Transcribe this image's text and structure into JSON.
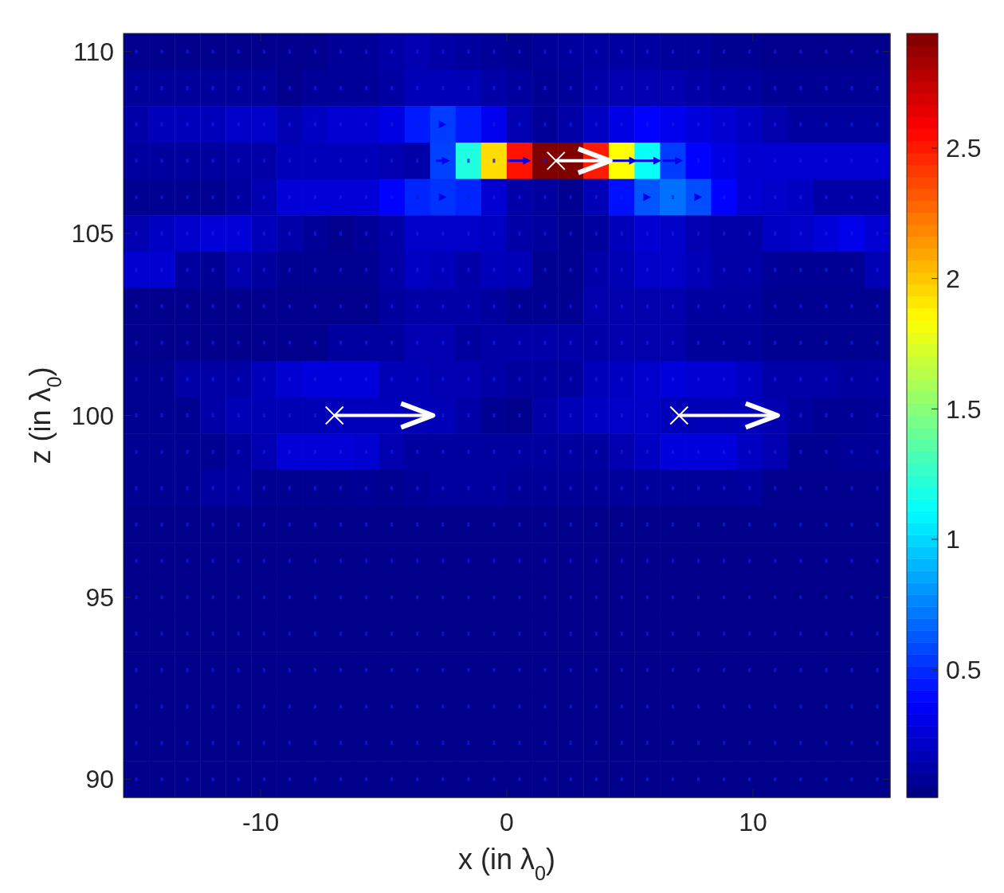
{
  "chart_data": {
    "type": "heatmap",
    "xlabel": "x (in λ$_{0}$)",
    "ylabel": "z (in λ$_{0}$)",
    "xlim": [
      -15.57,
      15.57
    ],
    "ylim": [
      89.5,
      110.5
    ],
    "xticks": [
      -10,
      0,
      10
    ],
    "yticks": [
      90,
      95,
      100,
      105,
      110
    ],
    "clim": [
      0.01,
      2.94
    ],
    "cticks": [
      0.5,
      1,
      1.5,
      2,
      2.5
    ],
    "cells": [
      [
        0.05,
        0.05,
        0.05,
        0.05,
        0.05,
        0.05,
        0.05,
        0.05,
        0.08,
        0.08,
        0.12,
        0.15,
        0.12,
        0.1,
        0.08,
        0.06,
        0.08,
        0.1,
        0.11,
        0.11,
        0.11,
        0.09,
        0.09,
        0.06,
        0.06,
        0.05,
        0.05,
        0.05,
        0.05,
        0.05
      ],
      [
        0.09,
        0.09,
        0.09,
        0.09,
        0.09,
        0.09,
        0.05,
        0.08,
        0.08,
        0.08,
        0.11,
        0.17,
        0.17,
        0.17,
        0.12,
        0.1,
        0.07,
        0.09,
        0.13,
        0.15,
        0.15,
        0.15,
        0.12,
        0.1,
        0.1,
        0.07,
        0.07,
        0.07,
        0.07,
        0.07
      ],
      [
        0.13,
        0.18,
        0.18,
        0.18,
        0.22,
        0.22,
        0.15,
        0.2,
        0.25,
        0.25,
        0.3,
        0.45,
        0.55,
        0.45,
        0.33,
        0.15,
        0.08,
        0.12,
        0.2,
        0.3,
        0.38,
        0.33,
        0.28,
        0.24,
        0.2,
        0.14,
        0.1,
        0.1,
        0.1,
        0.1
      ],
      [
        0.1,
        0.1,
        0.1,
        0.1,
        0.12,
        0.12,
        0.18,
        0.18,
        0.18,
        0.18,
        0.15,
        0.13,
        0.56,
        1.2,
        1.94,
        2.52,
        2.94,
        2.94,
        2.5,
        1.84,
        1.13,
        0.55,
        0.38,
        0.3,
        0.24,
        0.25,
        0.25,
        0.25,
        0.25,
        0.25
      ],
      [
        0.06,
        0.06,
        0.06,
        0.06,
        0.1,
        0.15,
        0.26,
        0.26,
        0.26,
        0.26,
        0.38,
        0.48,
        0.52,
        0.48,
        0.25,
        0.13,
        0.1,
        0.06,
        0.17,
        0.42,
        0.62,
        0.7,
        0.6,
        0.38,
        0.25,
        0.22,
        0.2,
        0.12,
        0.12,
        0.12
      ],
      [
        0.15,
        0.2,
        0.23,
        0.26,
        0.26,
        0.18,
        0.13,
        0.08,
        0.05,
        0.08,
        0.13,
        0.22,
        0.22,
        0.22,
        0.2,
        0.12,
        0.1,
        0.06,
        0.1,
        0.18,
        0.25,
        0.22,
        0.15,
        0.13,
        0.12,
        0.2,
        0.22,
        0.27,
        0.32,
        0.25
      ],
      [
        0.24,
        0.24,
        0.1,
        0.07,
        0.14,
        0.1,
        0.06,
        0.06,
        0.06,
        0.06,
        0.12,
        0.2,
        0.18,
        0.13,
        0.18,
        0.17,
        0.06,
        0.06,
        0.13,
        0.16,
        0.22,
        0.22,
        0.17,
        0.12,
        0.12,
        0.08,
        0.07,
        0.07,
        0.07,
        0.16
      ],
      [
        0.05,
        0.05,
        0.05,
        0.05,
        0.05,
        0.05,
        0.05,
        0.05,
        0.05,
        0.05,
        0.1,
        0.12,
        0.12,
        0.12,
        0.1,
        0.06,
        0.06,
        0.06,
        0.14,
        0.14,
        0.14,
        0.14,
        0.1,
        0.1,
        0.1,
        0.06,
        0.06,
        0.06,
        0.06,
        0.06
      ],
      [
        0.05,
        0.05,
        0.05,
        0.05,
        0.05,
        0.05,
        0.05,
        0.05,
        0.1,
        0.1,
        0.1,
        0.15,
        0.15,
        0.1,
        0.12,
        0.13,
        0.13,
        0.13,
        0.13,
        0.14,
        0.14,
        0.14,
        0.09,
        0.09,
        0.09,
        0.06,
        0.06,
        0.06,
        0.06,
        0.06
      ],
      [
        0.06,
        0.06,
        0.12,
        0.12,
        0.12,
        0.18,
        0.24,
        0.28,
        0.28,
        0.28,
        0.17,
        0.17,
        0.15,
        0.15,
        0.12,
        0.1,
        0.1,
        0.1,
        0.18,
        0.2,
        0.23,
        0.27,
        0.25,
        0.25,
        0.2,
        0.13,
        0.13,
        0.13,
        0.1,
        0.11
      ],
      [
        0.06,
        0.06,
        0.06,
        0.12,
        0.16,
        0.16,
        0.16,
        0.16,
        0.18,
        0.18,
        0.18,
        0.17,
        0.17,
        0.12,
        0.06,
        0.05,
        0.13,
        0.17,
        0.2,
        0.22,
        0.22,
        0.18,
        0.17,
        0.17,
        0.18,
        0.15,
        0.1,
        0.07,
        0.07,
        0.08
      ],
      [
        0.06,
        0.06,
        0.06,
        0.06,
        0.1,
        0.15,
        0.26,
        0.26,
        0.26,
        0.24,
        0.15,
        0.1,
        0.1,
        0.1,
        0.1,
        0.1,
        0.1,
        0.1,
        0.1,
        0.15,
        0.2,
        0.27,
        0.27,
        0.27,
        0.2,
        0.15,
        0.06,
        0.06,
        0.08,
        0.08
      ],
      [
        0.06,
        0.06,
        0.06,
        0.11,
        0.11,
        0.06,
        0.06,
        0.06,
        0.06,
        0.07,
        0.06,
        0.08,
        0.1,
        0.1,
        0.1,
        0.08,
        0.08,
        0.08,
        0.08,
        0.09,
        0.09,
        0.09,
        0.09,
        0.09,
        0.1,
        0.05,
        0.05,
        0.05,
        0.05,
        0.05
      ],
      [
        0.04,
        0.04,
        0.04,
        0.04,
        0.04,
        0.04,
        0.04,
        0.04,
        0.04,
        0.04,
        0.04,
        0.04,
        0.04,
        0.04,
        0.04,
        0.04,
        0.04,
        0.04,
        0.04,
        0.04,
        0.04,
        0.04,
        0.04,
        0.04,
        0.04,
        0.04,
        0.04,
        0.04,
        0.04,
        0.04
      ],
      [
        0.04,
        0.04,
        0.04,
        0.04,
        0.04,
        0.04,
        0.04,
        0.04,
        0.04,
        0.04,
        0.04,
        0.04,
        0.04,
        0.04,
        0.04,
        0.04,
        0.04,
        0.04,
        0.04,
        0.04,
        0.04,
        0.04,
        0.04,
        0.04,
        0.04,
        0.04,
        0.04,
        0.04,
        0.04,
        0.04
      ],
      [
        0.04,
        0.04,
        0.04,
        0.04,
        0.04,
        0.04,
        0.04,
        0.04,
        0.04,
        0.04,
        0.04,
        0.04,
        0.04,
        0.04,
        0.04,
        0.04,
        0.04,
        0.04,
        0.04,
        0.04,
        0.04,
        0.04,
        0.04,
        0.04,
        0.04,
        0.04,
        0.04,
        0.04,
        0.04,
        0.04
      ],
      [
        0.04,
        0.04,
        0.04,
        0.04,
        0.04,
        0.04,
        0.04,
        0.04,
        0.04,
        0.04,
        0.04,
        0.04,
        0.04,
        0.04,
        0.04,
        0.04,
        0.04,
        0.04,
        0.04,
        0.04,
        0.04,
        0.04,
        0.04,
        0.04,
        0.04,
        0.04,
        0.04,
        0.04,
        0.04,
        0.04
      ],
      [
        0.04,
        0.04,
        0.04,
        0.04,
        0.04,
        0.04,
        0.04,
        0.04,
        0.04,
        0.04,
        0.04,
        0.04,
        0.04,
        0.04,
        0.04,
        0.04,
        0.04,
        0.04,
        0.04,
        0.04,
        0.04,
        0.04,
        0.04,
        0.04,
        0.04,
        0.04,
        0.04,
        0.04,
        0.04,
        0.04
      ],
      [
        0.04,
        0.04,
        0.04,
        0.04,
        0.04,
        0.04,
        0.04,
        0.04,
        0.04,
        0.04,
        0.04,
        0.04,
        0.04,
        0.04,
        0.04,
        0.04,
        0.04,
        0.04,
        0.04,
        0.04,
        0.04,
        0.04,
        0.04,
        0.04,
        0.04,
        0.04,
        0.04,
        0.04,
        0.04,
        0.04
      ],
      [
        0.04,
        0.04,
        0.04,
        0.04,
        0.04,
        0.04,
        0.04,
        0.04,
        0.04,
        0.04,
        0.04,
        0.04,
        0.04,
        0.04,
        0.04,
        0.04,
        0.04,
        0.04,
        0.04,
        0.04,
        0.04,
        0.04,
        0.04,
        0.04,
        0.04,
        0.04,
        0.04,
        0.04,
        0.04,
        0.04
      ],
      [
        0.04,
        0.04,
        0.04,
        0.04,
        0.04,
        0.04,
        0.04,
        0.04,
        0.04,
        0.04,
        0.04,
        0.04,
        0.04,
        0.04,
        0.04,
        0.04,
        0.04,
        0.04,
        0.04,
        0.04,
        0.04,
        0.04,
        0.04,
        0.04,
        0.04,
        0.04,
        0.04,
        0.04,
        0.04,
        0.04
      ]
    ]
  }
}
